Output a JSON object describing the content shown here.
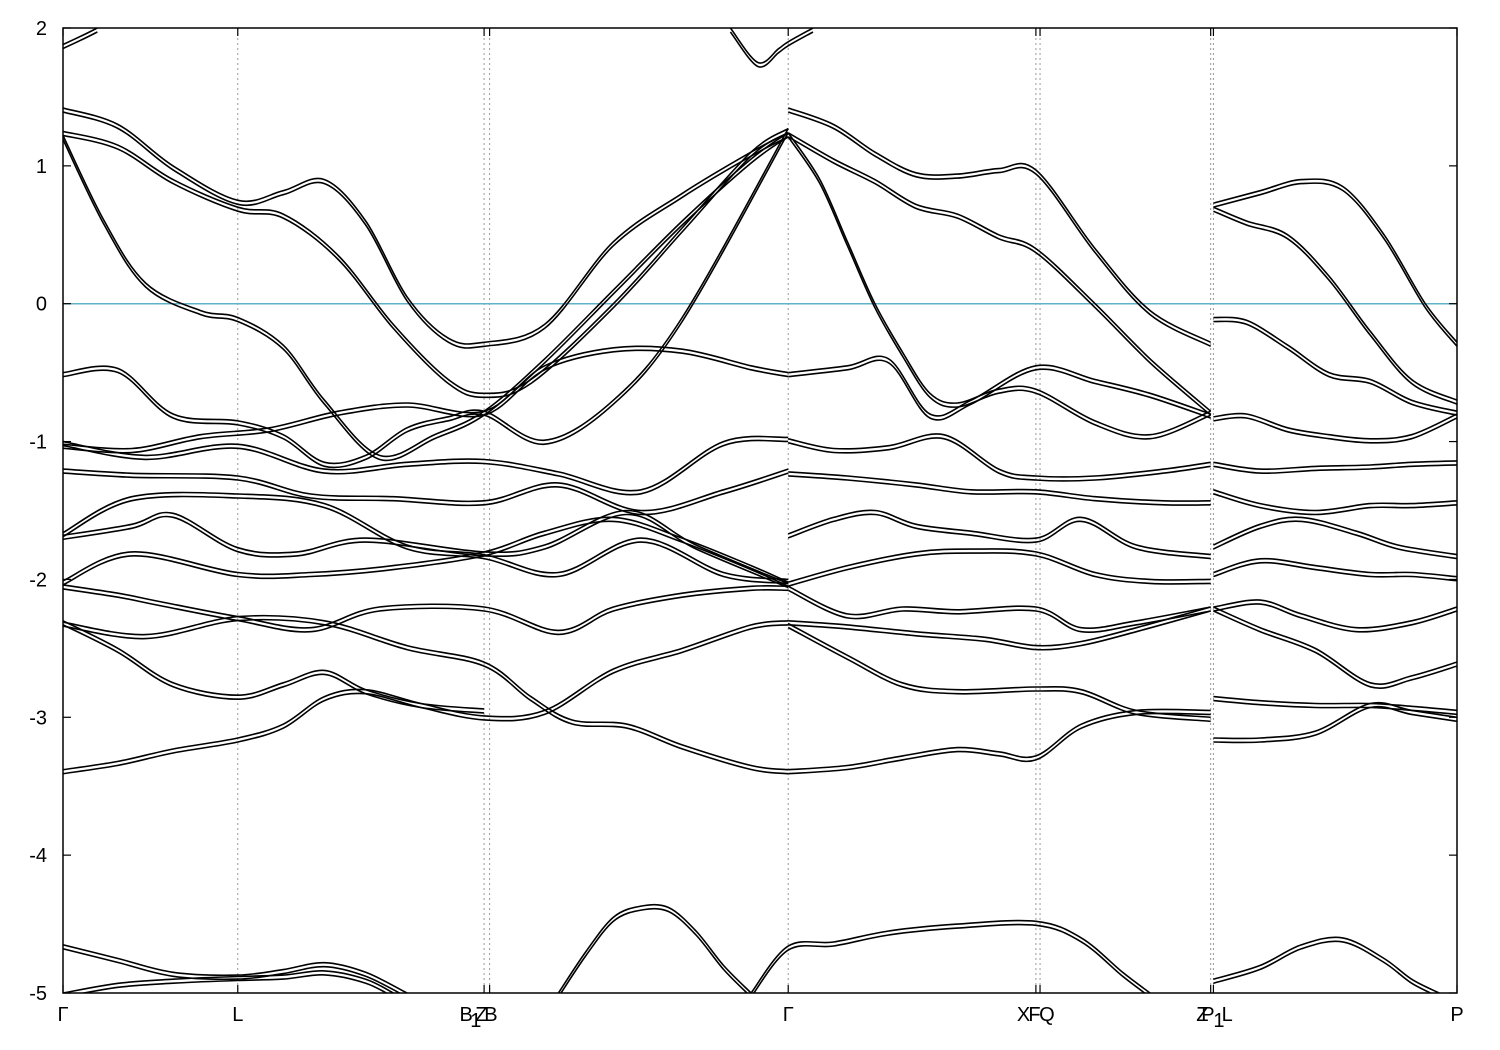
{
  "chart_data": {
    "type": "line",
    "title": "",
    "xlabel": "",
    "ylabel": "",
    "ylim": [
      -5,
      2
    ],
    "yticks": [
      2,
      1,
      0,
      -1,
      -2,
      -3,
      -4,
      -5
    ],
    "xlim": [
      0,
      10.13
    ],
    "kpoints": [
      {
        "label": "Γ",
        "x": 0
      },
      {
        "label": "L",
        "x": 1.27
      },
      {
        "label": "B1|Z",
        "x": 3.06
      },
      {
        "label": "B",
        "x": 3.1
      },
      {
        "label": "Γ",
        "x": 5.27
      },
      {
        "label": "X|Q",
        "x": 7.07
      },
      {
        "label": "F",
        "x": 7.1
      },
      {
        "label": "Z",
        "x": 8.34
      },
      {
        "label": "P1|L",
        "x": 8.36
      },
      {
        "label": "P",
        "x": 10.13
      }
    ],
    "kpoint_label_text": [
      {
        "label": "Γ",
        "x": 0
      },
      {
        "label": "L",
        "x": 1.27
      },
      {
        "label": "B",
        "x": 2.93
      },
      {
        "label": "1",
        "x": 3.0
      },
      {
        "label": "Z",
        "x": 3.04
      },
      {
        "label": "B",
        "x": 3.11
      },
      {
        "label": "Γ",
        "x": 5.27
      },
      {
        "label": "X",
        "x": 6.98
      },
      {
        "label": "F",
        "x": 7.06
      },
      {
        "label": "Q",
        "x": 7.15
      },
      {
        "label": "Z",
        "x": 8.28
      },
      {
        "label": "P",
        "x": 8.32
      },
      {
        "label": "1",
        "x": 8.4
      },
      {
        "label": "L",
        "x": 8.46
      },
      {
        "label": "P",
        "x": 10.13
      }
    ],
    "fermi_level": 0,
    "grid": "vertical dotted lines at high-symmetry points",
    "colors": {
      "bands": "#000000",
      "fermi": "#5fb3c8",
      "grid": "#999999"
    },
    "series": [
      {
        "x": [
          0,
          0.4,
          0.8,
          1.27,
          1.6,
          1.9,
          2.2,
          2.6,
          3.06,
          3.5,
          4.0,
          4.5,
          5.0,
          5.27
        ],
        "values": [
          -3.38,
          -3.32,
          -3.23,
          -3.15,
          -3.05,
          -2.85,
          -2.8,
          -2.9,
          -2.99,
          -2.95,
          -2.65,
          -2.5,
          -2.33,
          -2.3
        ]
      },
      {
        "x": [
          0,
          0.4,
          0.8,
          1.27,
          1.6,
          1.9,
          2.2,
          2.6,
          3.06
        ],
        "values": [
          -2.3,
          -2.5,
          -2.75,
          -2.84,
          -2.75,
          -2.66,
          -2.8,
          -2.9,
          -2.94
        ]
      },
      {
        "x": [
          0,
          0.6,
          1.27,
          1.9,
          2.5,
          3.06,
          3.4,
          3.7,
          4.1,
          4.5,
          5.0,
          5.27
        ],
        "values": [
          -2.31,
          -2.4,
          -2.27,
          -2.3,
          -2.48,
          -2.6,
          -2.85,
          -3.02,
          -3.05,
          -3.2,
          -3.35,
          -3.38
        ]
      },
      {
        "x": [
          0,
          0.4,
          0.7,
          1.27,
          1.8,
          2.3,
          3.06,
          3.6,
          4.0,
          4.5,
          5.0,
          5.27
        ],
        "values": [
          -2.04,
          -2.1,
          -2.16,
          -2.27,
          -2.35,
          -2.2,
          -2.2,
          -2.37,
          -2.2,
          -2.1,
          -2.05,
          -2.05
        ]
      },
      {
        "x": [
          0,
          0.5,
          1.27,
          1.8,
          2.4,
          3.06,
          3.5,
          4.0,
          4.5,
          5.0,
          5.27
        ],
        "values": [
          -2.01,
          -1.8,
          -1.95,
          -1.95,
          -1.9,
          -1.8,
          -1.65,
          -1.55,
          -1.7,
          -1.9,
          -2.02
        ]
      },
      {
        "x": [
          0,
          0.5,
          0.8,
          1.27,
          1.7,
          2.2,
          3.06,
          3.5,
          4.1,
          4.6,
          5.27
        ],
        "values": [
          -1.68,
          -1.6,
          -1.52,
          -1.77,
          -1.8,
          -1.7,
          -1.8,
          -1.75,
          -1.5,
          -1.75,
          -2.03
        ]
      },
      {
        "x": [
          0,
          0.5,
          1.27,
          1.9,
          2.5,
          3.06,
          3.6,
          4.2,
          4.8,
          5.27
        ],
        "values": [
          -1.66,
          -1.4,
          -1.38,
          -1.45,
          -1.75,
          -1.82,
          -1.95,
          -1.7,
          -1.95,
          -2.0
        ]
      },
      {
        "x": [
          0,
          0.5,
          1.27,
          1.8,
          2.4,
          3.06,
          3.6,
          4.2,
          4.8,
          5.27
        ],
        "values": [
          -1.2,
          -1.23,
          -1.25,
          -1.38,
          -1.4,
          -1.43,
          -1.3,
          -1.5,
          -1.35,
          -1.2
        ]
      },
      {
        "x": [
          0,
          0.6,
          1.27,
          1.9,
          2.5,
          3.06,
          3.6,
          4.2,
          4.8,
          5.27
        ],
        "values": [
          -1.0,
          -1.1,
          -1.02,
          -1.2,
          -1.15,
          -1.13,
          -1.22,
          -1.35,
          -1.0,
          -0.97
        ]
      },
      {
        "x": [
          0,
          0.3,
          0.6,
          1.0,
          1.27,
          1.6,
          1.9,
          2.3,
          2.7,
          3.06,
          3.5,
          4.0,
          4.5,
          5.0,
          5.27
        ],
        "values": [
          1.22,
          0.6,
          0.15,
          -0.05,
          -0.1,
          -0.3,
          -0.7,
          -1.1,
          -0.95,
          -0.78,
          -0.4,
          0.1,
          0.6,
          1.05,
          1.24
        ]
      },
      {
        "x": [
          0,
          0.4,
          0.8,
          1.27,
          1.6,
          2.0,
          2.4,
          2.8,
          3.06,
          3.4,
          4.0,
          4.5,
          5.0,
          5.27
        ],
        "values": [
          1.25,
          1.15,
          0.9,
          0.7,
          0.65,
          0.35,
          -0.15,
          -0.55,
          -0.65,
          -0.55,
          0.0,
          0.55,
          1.1,
          1.27
        ]
      },
      {
        "x": [
          0,
          0.4,
          0.8,
          1.27,
          1.6,
          1.9,
          2.2,
          2.5,
          2.8,
          3.06,
          3.5,
          4.0,
          4.5,
          5.0,
          5.27
        ],
        "values": [
          1.42,
          1.3,
          1.0,
          0.75,
          0.82,
          0.9,
          0.6,
          0.05,
          -0.25,
          -0.28,
          -0.15,
          0.45,
          0.8,
          1.1,
          1.24
        ]
      },
      {
        "x": [
          0,
          0.4,
          0.8,
          1.27,
          1.6,
          1.9,
          2.2,
          2.5,
          2.8,
          3.06,
          3.5,
          4.0,
          4.5,
          5.27
        ],
        "values": [
          -0.5,
          -0.47,
          -0.8,
          -0.85,
          -0.95,
          -1.15,
          -1.1,
          -0.9,
          -0.82,
          -0.78,
          -0.99,
          -0.7,
          -0.1,
          1.27
        ]
      },
      {
        "x": [
          0,
          0.5,
          1.0,
          1.5,
          2.0,
          2.5,
          3.06,
          3.5,
          4.0,
          4.5,
          5.0,
          5.27
        ],
        "values": [
          -1.02,
          -1.05,
          -0.95,
          -0.9,
          -0.78,
          -0.72,
          -0.78,
          -0.45,
          -0.32,
          -0.33,
          -0.45,
          -0.5
        ]
      },
      {
        "x": [
          5.27,
          5.6,
          5.9,
          6.2,
          6.5,
          6.8,
          7.07,
          7.5,
          7.9,
          8.34
        ],
        "values": [
          1.42,
          1.3,
          1.1,
          0.95,
          0.94,
          0.98,
          0.97,
          0.4,
          -0.05,
          -0.28
        ]
      },
      {
        "x": [
          5.27,
          5.6,
          5.9,
          6.2,
          6.5,
          6.8,
          7.07,
          7.5,
          7.9,
          8.34
        ],
        "values": [
          1.24,
          1.05,
          0.9,
          0.72,
          0.65,
          0.5,
          0.4,
          0.0,
          -0.4,
          -0.78
        ]
      },
      {
        "x": [
          5.27,
          5.5,
          5.7,
          5.9,
          6.1,
          6.3,
          6.5,
          6.8,
          7.07,
          7.5,
          7.9,
          8.34
        ],
        "values": [
          1.24,
          0.9,
          0.45,
          0.0,
          -0.35,
          -0.65,
          -0.72,
          -0.62,
          -0.62,
          -0.85,
          -0.95,
          -0.78
        ]
      },
      {
        "x": [
          5.27,
          5.7,
          6.0,
          6.3,
          6.6,
          7.07,
          7.5,
          7.9,
          8.34
        ],
        "values": [
          -0.5,
          -0.45,
          -0.4,
          -0.8,
          -0.7,
          -0.45,
          -0.55,
          -0.65,
          -0.8
        ]
      },
      {
        "x": [
          5.27,
          5.6,
          6.0,
          6.4,
          6.8,
          7.07,
          7.5,
          8.0,
          8.34
        ],
        "values": [
          -0.98,
          -1.05,
          -1.03,
          -0.95,
          -1.2,
          -1.25,
          -1.25,
          -1.2,
          -1.15
        ]
      },
      {
        "x": [
          5.27,
          5.7,
          6.2,
          6.6,
          7.07,
          7.5,
          8.0,
          8.34
        ],
        "values": [
          -1.22,
          -1.25,
          -1.3,
          -1.35,
          -1.35,
          -1.4,
          -1.43,
          -1.43
        ]
      },
      {
        "x": [
          5.27,
          5.6,
          5.9,
          6.2,
          6.6,
          7.07,
          7.4,
          7.8,
          8.34
        ],
        "values": [
          -1.67,
          -1.55,
          -1.5,
          -1.6,
          -1.65,
          -1.7,
          -1.55,
          -1.75,
          -1.82
        ]
      },
      {
        "x": [
          5.27,
          5.7,
          6.2,
          6.6,
          7.07,
          7.5,
          7.9,
          8.34
        ],
        "values": [
          -2.02,
          -1.9,
          -1.8,
          -1.78,
          -1.8,
          -1.95,
          -2.0,
          -2.0
        ]
      },
      {
        "x": [
          5.27,
          5.7,
          6.1,
          6.5,
          7.07,
          7.4,
          7.8,
          8.34
        ],
        "values": [
          -2.05,
          -2.25,
          -2.2,
          -2.22,
          -2.2,
          -2.35,
          -2.3,
          -2.2
        ]
      },
      {
        "x": [
          5.27,
          5.7,
          6.2,
          6.7,
          7.07,
          7.4,
          7.8,
          8.34
        ],
        "values": [
          -2.3,
          -2.33,
          -2.38,
          -2.42,
          -2.48,
          -2.45,
          -2.35,
          -2.2
        ]
      },
      {
        "x": [
          5.27,
          5.7,
          6.1,
          6.5,
          7.07,
          7.4,
          7.8,
          8.34
        ],
        "values": [
          -2.32,
          -2.55,
          -2.75,
          -2.8,
          -2.78,
          -2.8,
          -2.95,
          -3.0
        ]
      },
      {
        "x": [
          5.27,
          5.7,
          6.1,
          6.5,
          6.8,
          7.07,
          7.4,
          7.8,
          8.34
        ],
        "values": [
          -3.38,
          -3.35,
          -3.28,
          -3.22,
          -3.25,
          -3.28,
          -3.05,
          -2.95,
          -2.95
        ]
      },
      {
        "x": [
          8.36,
          8.7,
          9.0,
          9.3,
          9.6,
          9.9,
          10.13
        ],
        "values": [
          0.73,
          0.82,
          0.9,
          0.85,
          0.5,
          0.0,
          -0.28
        ]
      },
      {
        "x": [
          8.36,
          8.6,
          8.9,
          9.2,
          9.5,
          9.8,
          10.13
        ],
        "values": [
          0.7,
          0.6,
          0.5,
          0.2,
          -0.2,
          -0.55,
          -0.7
        ]
      },
      {
        "x": [
          8.36,
          8.6,
          8.9,
          9.2,
          9.5,
          9.8,
          10.13
        ],
        "values": [
          -0.1,
          -0.12,
          -0.3,
          -0.5,
          -0.55,
          -0.7,
          -0.78
        ]
      },
      {
        "x": [
          8.36,
          8.6,
          8.9,
          9.2,
          9.5,
          9.8,
          10.13
        ],
        "values": [
          -0.82,
          -0.8,
          -0.9,
          -0.95,
          -0.98,
          -0.95,
          -0.8
        ]
      },
      {
        "x": [
          8.36,
          8.7,
          9.1,
          9.5,
          9.8,
          10.13
        ],
        "values": [
          -1.15,
          -1.2,
          -1.18,
          -1.17,
          -1.15,
          -1.14
        ]
      },
      {
        "x": [
          8.36,
          8.7,
          9.1,
          9.5,
          9.8,
          10.13
        ],
        "values": [
          -1.35,
          -1.45,
          -1.5,
          -1.45,
          -1.45,
          -1.43
        ]
      },
      {
        "x": [
          8.36,
          8.7,
          9.0,
          9.4,
          9.7,
          10.13
        ],
        "values": [
          -1.75,
          -1.6,
          -1.55,
          -1.65,
          -1.75,
          -1.82
        ]
      },
      {
        "x": [
          8.36,
          8.7,
          9.1,
          9.5,
          9.8,
          10.13
        ],
        "values": [
          -1.95,
          -1.85,
          -1.9,
          -1.95,
          -1.95,
          -1.98
        ]
      },
      {
        "x": [
          8.36,
          8.7,
          9.0,
          9.4,
          9.8,
          10.13
        ],
        "values": [
          -2.2,
          -2.15,
          -2.25,
          -2.35,
          -2.3,
          -2.2
        ]
      },
      {
        "x": [
          8.36,
          8.7,
          9.1,
          9.5,
          9.8,
          10.13
        ],
        "values": [
          -2.2,
          -2.35,
          -2.5,
          -2.75,
          -2.7,
          -2.6
        ]
      },
      {
        "x": [
          8.36,
          8.7,
          9.1,
          9.5,
          9.8,
          10.13
        ],
        "values": [
          -2.85,
          -2.88,
          -2.9,
          -2.9,
          -2.92,
          -2.95
        ]
      },
      {
        "x": [
          8.36,
          8.7,
          9.1,
          9.5,
          9.8,
          10.13
        ],
        "values": [
          -3.15,
          -3.15,
          -3.1,
          -2.9,
          -2.95,
          -3.0
        ]
      },
      {
        "x": [
          0,
          0.4,
          0.8,
          1.27,
          1.6,
          1.9,
          2.2,
          2.5
        ],
        "values": [
          -4.65,
          -4.75,
          -4.85,
          -4.87,
          -4.83,
          -4.78,
          -4.85,
          -5.0
        ]
      },
      {
        "x": [
          0,
          0.4,
          0.8,
          1.27,
          1.6,
          1.9,
          2.2,
          2.4
        ],
        "values": [
          -5.0,
          -4.93,
          -4.9,
          -4.88,
          -4.87,
          -4.84,
          -4.9,
          -5.0
        ]
      },
      {
        "x": [
          3.6,
          3.8,
          4.0,
          4.2,
          4.4,
          4.6,
          4.8,
          5.0
        ],
        "values": [
          -5.0,
          -4.7,
          -4.45,
          -4.37,
          -4.38,
          -4.55,
          -4.8,
          -5.0
        ]
      },
      {
        "x": [
          5.0,
          5.27,
          5.6,
          6.0,
          6.5,
          7.07,
          7.4,
          7.7,
          7.9
        ],
        "values": [
          -5.0,
          -4.66,
          -4.63,
          -4.55,
          -4.5,
          -4.48,
          -4.6,
          -4.85,
          -5.0
        ]
      },
      {
        "x": [
          8.36,
          8.7,
          9.0,
          9.3,
          9.6,
          9.8,
          10.0
        ],
        "values": [
          -4.9,
          -4.8,
          -4.65,
          -4.6,
          -4.75,
          -4.9,
          -5.0
        ]
      },
      {
        "x": [
          0,
          0.15,
          0.25
        ],
        "values": [
          1.88,
          1.95,
          2.0
        ]
      },
      {
        "x": [
          4.85,
          5.05,
          5.2,
          5.27,
          5.45
        ],
        "values": [
          2.0,
          1.75,
          1.85,
          1.9,
          2.0
        ]
      }
    ]
  }
}
